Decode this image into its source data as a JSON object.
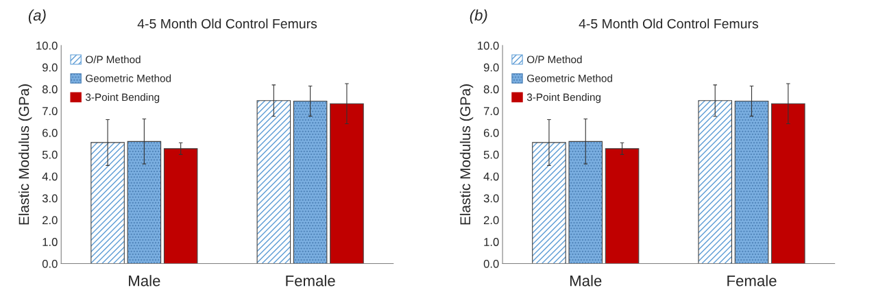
{
  "chart_data": [
    {
      "type": "bar",
      "title": "4-5 Month Old Control Femurs",
      "ylabel": "Elastic Modulus (GPa)",
      "annotations": [
        "(a)"
      ],
      "categories": [
        "Male",
        "Female"
      ],
      "series": [
        {
          "name": "O/P Method",
          "color": "#5b9bd5",
          "values": [
            5.55,
            7.47
          ],
          "errors": [
            1.05,
            0.72
          ]
        },
        {
          "name": "Geometric Method",
          "color": "#7aaee0",
          "values": [
            5.6,
            7.45
          ],
          "errors": [
            1.03,
            0.69
          ]
        },
        {
          "name": "3-Point Bending",
          "color": "#c00000",
          "values": [
            5.27,
            7.33
          ],
          "errors": [
            0.27,
            0.92
          ]
        }
      ],
      "ylim": [
        0,
        10
      ],
      "yticks": [
        {
          "value": 0,
          "label": "0.0"
        },
        {
          "value": 1,
          "label": "1.0"
        },
        {
          "value": 2,
          "label": "2.0"
        },
        {
          "value": 3,
          "label": "3.0"
        },
        {
          "value": 4,
          "label": "4.0"
        },
        {
          "value": 5,
          "label": "5.0"
        },
        {
          "value": 6,
          "label": "6.0"
        },
        {
          "value": 7,
          "label": "7.0"
        },
        {
          "value": 8,
          "label": "8.0"
        },
        {
          "value": 9,
          "label": "9.0"
        },
        {
          "value": 10,
          "label": "10.0"
        }
      ],
      "grid": false,
      "legend": "top left"
    },
    {
      "type": "bar",
      "title": "4-5 Month Old Control Femurs",
      "ylabel": "Elastic Modulus (GPa)",
      "annotations": [
        "(b)"
      ],
      "categories": [
        "Male",
        "Female"
      ],
      "series": [
        {
          "name": "O/P Method",
          "color": "#5b9bd5",
          "values": [
            5.55,
            7.47
          ],
          "errors": [
            1.05,
            0.72
          ]
        },
        {
          "name": "Geometric Method",
          "color": "#7aaee0",
          "values": [
            5.6,
            7.45
          ],
          "errors": [
            1.03,
            0.69
          ]
        },
        {
          "name": "3-Point Bending",
          "color": "#c00000",
          "values": [
            5.27,
            7.33
          ],
          "errors": [
            0.27,
            0.92
          ]
        }
      ],
      "ylim": [
        0,
        10
      ],
      "yticks": [
        {
          "value": 0,
          "label": "0.0"
        },
        {
          "value": 1,
          "label": "1.0"
        },
        {
          "value": 2,
          "label": "2.0"
        },
        {
          "value": 3,
          "label": "3.0"
        },
        {
          "value": 4,
          "label": "4.0"
        },
        {
          "value": 5,
          "label": "5.0"
        },
        {
          "value": 6,
          "label": "6.0"
        },
        {
          "value": 7,
          "label": "7.0"
        },
        {
          "value": 8,
          "label": "8.0"
        },
        {
          "value": 9,
          "label": "9.0"
        },
        {
          "value": 10,
          "label": "10.0"
        }
      ],
      "grid": false,
      "legend": "top left"
    }
  ]
}
